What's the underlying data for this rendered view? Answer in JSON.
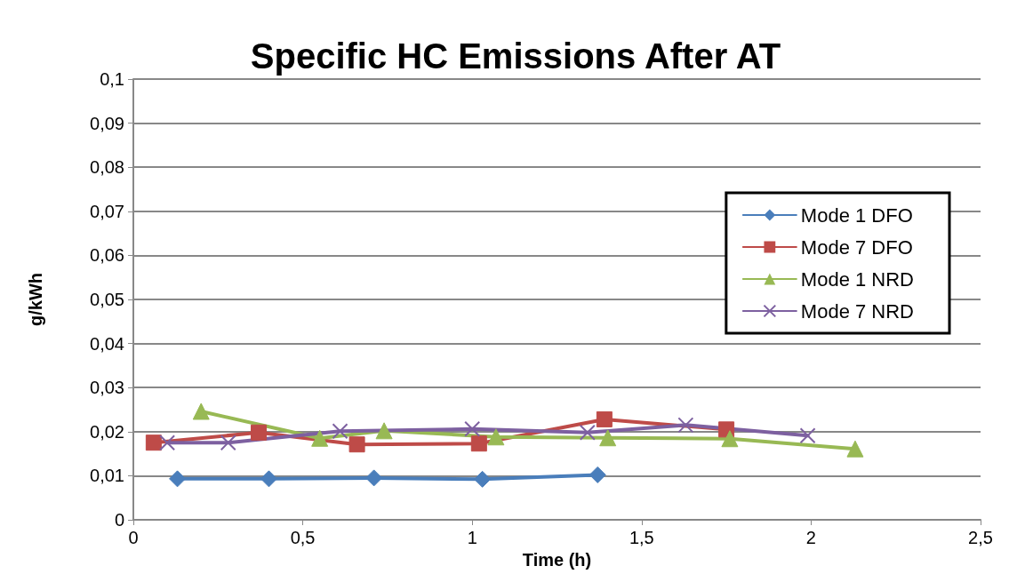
{
  "chart_data": {
    "type": "line",
    "title": "Specific HC Emissions After AT",
    "xlabel": "Time (h)",
    "ylabel": "g/kWh",
    "series": [
      {
        "name": "Mode 1 DFO",
        "color": "#4a7ebb",
        "marker": "diamond",
        "x": [
          0.13,
          0.4,
          0.71,
          1.03,
          1.37
        ],
        "values": [
          0.0093,
          0.0093,
          0.0095,
          0.0092,
          0.0102
        ]
      },
      {
        "name": "Mode 7 DFO",
        "color": "#be4b48",
        "marker": "square",
        "x": [
          0.06,
          0.37,
          0.66,
          1.02,
          1.39,
          1.75
        ],
        "values": [
          0.0175,
          0.0198,
          0.0171,
          0.0173,
          0.0228,
          0.0205
        ]
      },
      {
        "name": "Mode 1 NRD",
        "color": "#98b954",
        "marker": "triangle",
        "x": [
          0.2,
          0.55,
          0.74,
          1.07,
          1.4,
          1.76,
          2.13
        ],
        "values": [
          0.0246,
          0.0185,
          0.0202,
          0.0188,
          0.0186,
          0.0184,
          0.0161
        ]
      },
      {
        "name": "Mode 7 NRD",
        "color": "#7d60a0",
        "marker": "cross",
        "x": [
          0.1,
          0.28,
          0.61,
          1.0,
          1.34,
          1.63,
          1.99
        ],
        "values": [
          0.0175,
          0.0175,
          0.0201,
          0.0206,
          0.0198,
          0.0215,
          0.0191
        ]
      }
    ],
    "xlim": [
      0,
      2.5
    ],
    "xticks": [
      0,
      {
        "value": 0.5,
        "label": "0,5"
      },
      1,
      {
        "value": 1.5,
        "label": "1,5"
      },
      2,
      {
        "value": 2.5,
        "label": "2,5"
      }
    ],
    "ylim": [
      0,
      0.1
    ],
    "yticks": [
      0,
      {
        "value": 0.01,
        "label": "0,01"
      },
      {
        "value": 0.02,
        "label": "0,02"
      },
      {
        "value": 0.03,
        "label": "0,03"
      },
      {
        "value": 0.04,
        "label": "0,04"
      },
      {
        "value": 0.05,
        "label": "0,05"
      },
      {
        "value": 0.06,
        "label": "0,06"
      },
      {
        "value": 0.07,
        "label": "0,07"
      },
      {
        "value": 0.08,
        "label": "0,08"
      },
      {
        "value": 0.09,
        "label": "0,09"
      },
      {
        "value": 0.1,
        "label": "0,1"
      }
    ],
    "grid": "y",
    "legend": "right",
    "line_style": "solid"
  }
}
